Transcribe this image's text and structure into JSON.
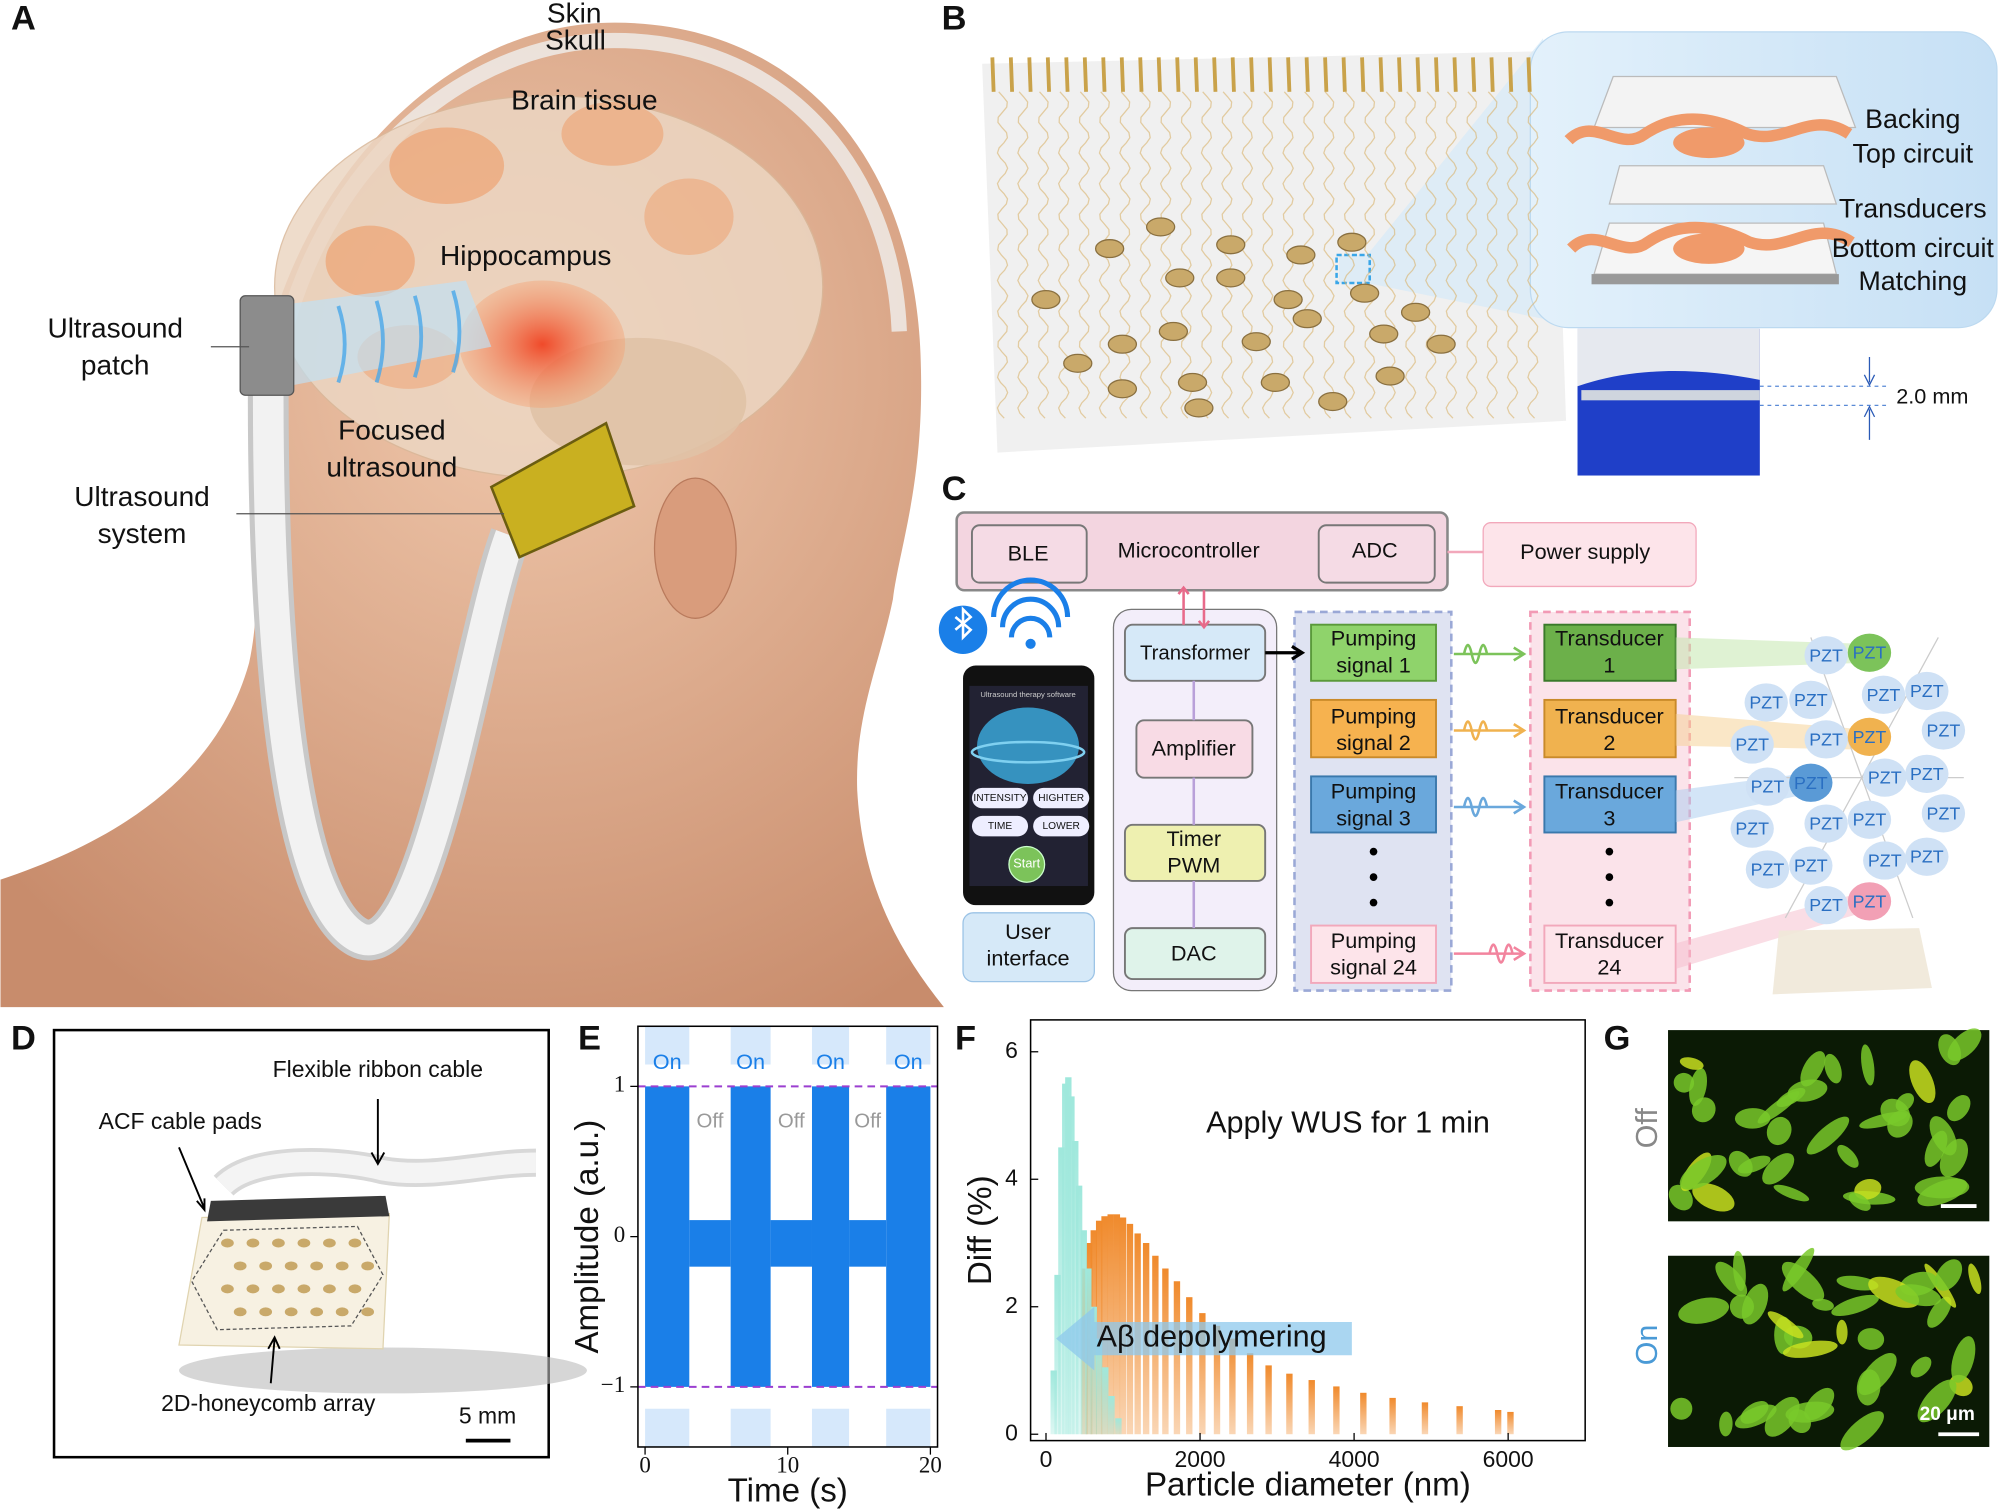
{
  "panel_labels": [
    "A",
    "B",
    "C",
    "D",
    "E",
    "F",
    "G"
  ],
  "panel_a": {
    "skin": "Skin",
    "skull": "Skull",
    "brain_tissue": "Brain tissue",
    "hippocampus": "Hippocampus",
    "patch": [
      "Ultrasound",
      "patch"
    ],
    "focused": [
      "Focused",
      "ultrasound"
    ],
    "system": [
      "Ultrasound",
      "system"
    ]
  },
  "panel_b": {
    "layers": [
      "Backing",
      "Top circuit",
      "Transducers",
      "Bottom circuit",
      "Matching"
    ],
    "thickness": "2.0 mm"
  },
  "panel_c": {
    "ble": "BLE",
    "microcontroller": "Microcontroller",
    "adc": "ADC",
    "power": "Power supply",
    "app": {
      "title": "Ultrasound therapy software",
      "buttons": [
        "INTENSITY",
        "HIGHTER",
        "TIME",
        "LOWER"
      ],
      "start": "Start"
    },
    "user_interface": [
      "User",
      "interface"
    ],
    "chain": [
      "Transformer",
      "Amplifier",
      [
        "Timer",
        "PWM"
      ],
      "DAC"
    ],
    "pumping": [
      [
        "Pumping",
        "signal 1"
      ],
      [
        "Pumping",
        "signal 2"
      ],
      [
        "Pumping",
        "signal 3"
      ],
      [
        "Pumping",
        "signal 24"
      ]
    ],
    "transducers": [
      [
        "Transducer",
        "1"
      ],
      [
        "Transducer",
        "2"
      ],
      [
        "Transducer",
        "3"
      ],
      [
        "Transducer",
        "24"
      ]
    ],
    "pzt": [
      "PZT",
      "PZT",
      "PZT",
      "PZT",
      "PZT",
      "PZT",
      "PZT",
      "PZT",
      "PZT",
      "PZT",
      "PZT",
      "PZT",
      "PZT",
      "PZT",
      "PZT",
      "PZT",
      "PZT",
      "PZT",
      "PZT",
      "PZT",
      "PZT",
      "PZT",
      "PZT",
      "PZT"
    ]
  },
  "panel_d": {
    "cable": "Flexible ribbon cable",
    "pads": "ACF cable pads",
    "array": "2D-honeycomb array",
    "scale": "5 mm"
  },
  "chart_data": [
    {
      "type": "band",
      "xlabel": "Time (s)",
      "ylabel": "Amplitude (a.u.)",
      "xlim": [
        -0.5,
        20.5
      ],
      "ylim": [
        -1.4,
        1.4
      ],
      "xticks": [
        0,
        10,
        20
      ],
      "yticks": [
        {
          "value": -1,
          "label": "−1"
        },
        0,
        1
      ],
      "color": "#1a7fe8",
      "reference_lines": [
        1,
        -1
      ],
      "reference_color": "#9b3fd0",
      "segments": [
        {
          "start": 0,
          "end": 3.1,
          "low": -1,
          "high": 1
        },
        {
          "start": 3.1,
          "end": 6,
          "low": -0.2,
          "high": 0.11
        },
        {
          "start": 6,
          "end": 8.8,
          "low": -1,
          "high": 1
        },
        {
          "start": 8.8,
          "end": 11.7,
          "low": -0.2,
          "high": 0.11
        },
        {
          "start": 11.7,
          "end": 14.3,
          "low": -1,
          "high": 1
        },
        {
          "start": 14.3,
          "end": 16.9,
          "low": -0.2,
          "high": 0.11
        },
        {
          "start": 16.9,
          "end": 20,
          "low": -1,
          "high": 1
        }
      ],
      "on_labels": [
        "On",
        "On",
        "On",
        "On"
      ],
      "off_labels": [
        "Off",
        "Off",
        "Off"
      ]
    },
    {
      "type": "bar",
      "title": "Apply WUS for 1 min",
      "annotation": "Aβ depolymering",
      "xlabel": "Particle diameter (nm)",
      "ylabel": "Diff (%)",
      "xlim": [
        -200,
        7000
      ],
      "ylim": [
        -0.1,
        6.5
      ],
      "xticks": [
        0,
        2000,
        4000,
        6000
      ],
      "yticks": [
        0,
        2,
        4,
        6
      ],
      "series": [
        {
          "color": "#f08a2c",
          "x": [
            500,
            560,
            620,
            690,
            760,
            840,
            920,
            1000,
            1090,
            1190,
            1300,
            1420,
            1550,
            1700,
            1860,
            2030,
            2220,
            2420,
            2650,
            2890,
            3160,
            3450,
            3770,
            4120,
            4500,
            4920,
            5370,
            5870,
            6030
          ],
          "values": [
            2.6,
            3.0,
            3.2,
            3.35,
            3.42,
            3.45,
            3.45,
            3.4,
            3.3,
            3.15,
            3.0,
            2.8,
            2.6,
            2.4,
            2.15,
            1.9,
            1.7,
            1.5,
            1.27,
            1.08,
            0.95,
            0.85,
            0.75,
            0.65,
            0.57,
            0.5,
            0.44,
            0.38,
            0.35
          ]
        },
        {
          "color": "#9fe8dc",
          "x": [
            100,
            150,
            200,
            250,
            290,
            330,
            380,
            430,
            490,
            550,
            620,
            690,
            770,
            850,
            940
          ],
          "values": [
            1.0,
            2.5,
            4.5,
            5.5,
            5.6,
            5.3,
            4.6,
            3.9,
            3.2,
            2.6,
            2.0,
            1.5,
            1.05,
            0.6,
            0.25
          ]
        }
      ]
    }
  ],
  "panel_g": {
    "off": "Off",
    "on": "On",
    "scale": "20 μm"
  }
}
